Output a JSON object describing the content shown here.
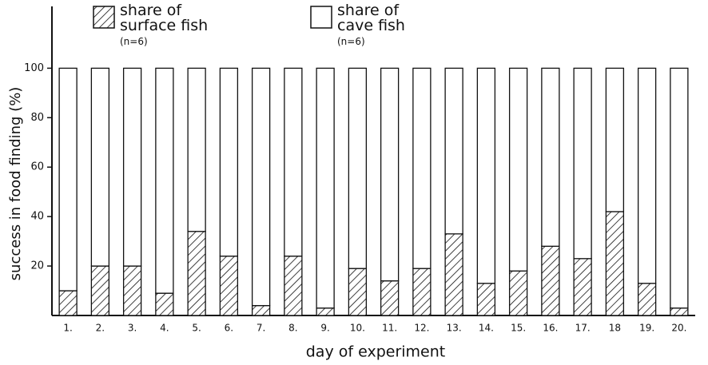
{
  "chart_data": {
    "type": "stacked-bar",
    "ylabel": "success in food finding (%)",
    "xlabel": "day of experiment",
    "categories": [
      "1.",
      "2.",
      "3.",
      "4.",
      "5.",
      "6.",
      "7.",
      "8.",
      "9.",
      "10.",
      "11.",
      "12.",
      "13.",
      "14.",
      "15.",
      "16.",
      "17.",
      "18",
      "19.",
      "20."
    ],
    "series": [
      {
        "name": "share of\nsurface fish",
        "note": "(n=6)",
        "color": "#111111",
        "hatch": true,
        "values": [
          10,
          20,
          20,
          9,
          34,
          24,
          4,
          24,
          3,
          19,
          14,
          19,
          33,
          13,
          18,
          28,
          23,
          42,
          13,
          3
        ]
      },
      {
        "name": "share of\ncave fish",
        "note": "(n=6)",
        "color": "#ffffff",
        "hatch": false,
        "values": [
          90,
          80,
          80,
          91,
          66,
          76,
          96,
          76,
          97,
          81,
          86,
          81,
          67,
          87,
          82,
          72,
          77,
          58,
          87,
          97
        ]
      }
    ],
    "ylim": [
      0,
      125
    ],
    "yticks": [
      20,
      40,
      60,
      80,
      100
    ]
  }
}
